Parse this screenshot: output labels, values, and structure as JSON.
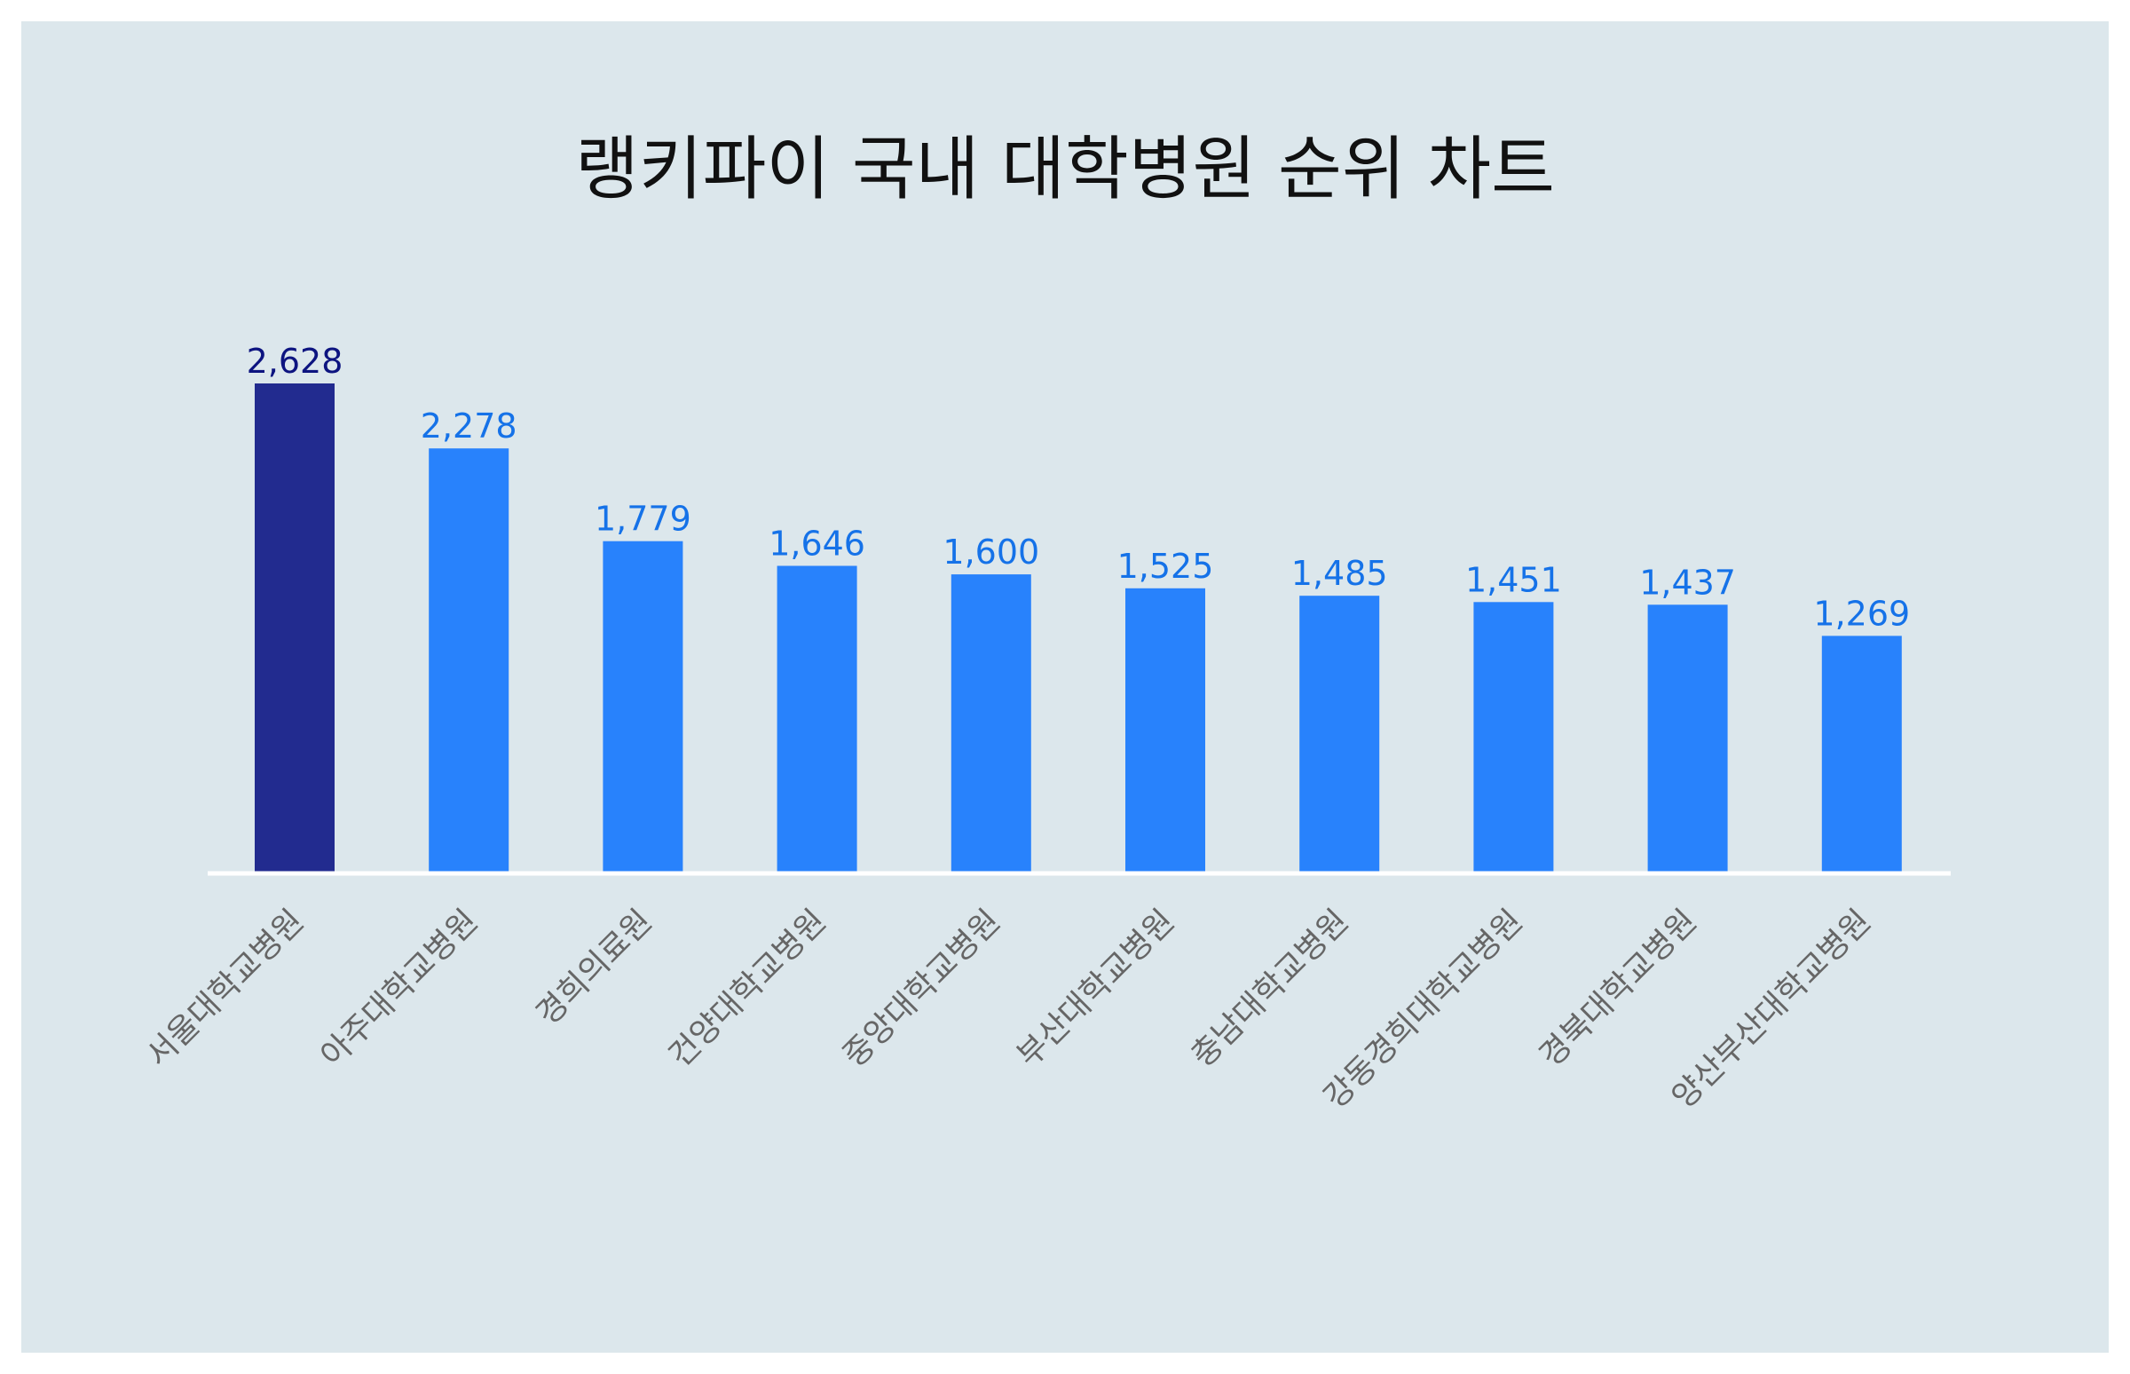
{
  "chart_data": {
    "type": "bar",
    "title": "랭키파이 국내 대학병원 순위 차트",
    "xlabel": "",
    "ylabel": "",
    "ylim": [
      0,
      2628
    ],
    "grid": false,
    "legend": "none",
    "categories": [
      "서울대학교병원",
      "아주대학교병원",
      "경희의료원",
      "건양대학교병원",
      "중앙대학교병원",
      "부산대학교병원",
      "충남대학교병원",
      "강동경희대학교병원",
      "경북대학교병원",
      "양산부산대학교병원"
    ],
    "values": [
      2628,
      2278,
      1779,
      1646,
      1600,
      1525,
      1485,
      1451,
      1437,
      1269
    ],
    "value_labels": [
      "2,628",
      "2,278",
      "1,779",
      "1,646",
      "1,600",
      "1,525",
      "1,485",
      "1,451",
      "1,437",
      "1,269"
    ],
    "colors": {
      "top_bar": "#222b8f",
      "bar": "#2882fc",
      "top_label": "#0d1480",
      "label": "#1572e8",
      "axis": "#ffffff",
      "tick_label": "#666666",
      "background": "#dce7ec"
    }
  }
}
